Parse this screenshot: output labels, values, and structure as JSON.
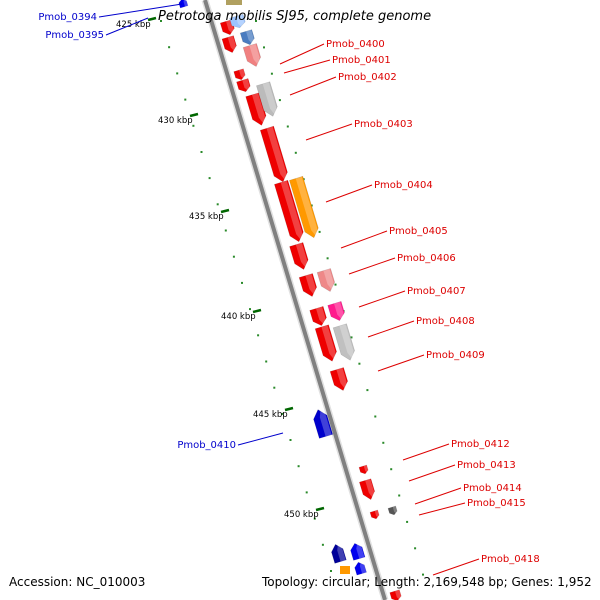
{
  "title": "Petrotoga mobilis SJ95, complete genome",
  "footer": {
    "accession": "Accession: NC_010003",
    "summary": "Topology: circular; Length: 2,169,548 bp; Genes: 1,952"
  },
  "ticks": [
    "425 kbp",
    "430 kbp",
    "435 kbp",
    "440 kbp",
    "445 kbp",
    "450 kbp"
  ],
  "forward_gene_labels": [
    "Pmob_0394",
    "Pmob_0395",
    "Pmob_0410"
  ],
  "reverse_gene_labels": [
    "Pmob_0400",
    "Pmob_0401",
    "Pmob_0402",
    "Pmob_0403",
    "Pmob_0404",
    "Pmob_0405",
    "Pmob_0406",
    "Pmob_0407",
    "Pmob_0408",
    "Pmob_0409",
    "Pmob_0412",
    "Pmob_0413",
    "Pmob_0414",
    "Pmob_0415",
    "Pmob_0418"
  ],
  "colors": {
    "backbone": "#808080",
    "forward_strand": "#0000dd",
    "reverse_strand": "#ee0000",
    "tick": "#006600",
    "label_line_forward": "#0000cc",
    "label_line_reverse": "#dd0000"
  }
}
